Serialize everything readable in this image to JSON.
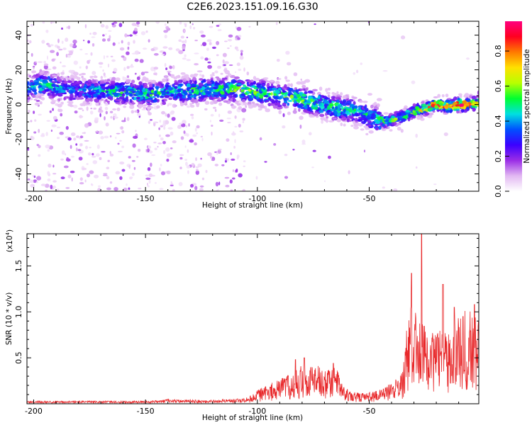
{
  "title": "C2E6.2023.151.09.16.G30",
  "colors": {
    "heat_stops": [
      "#ffffff",
      "#e2b8f2",
      "#9a2de6",
      "#3b00ff",
      "#0050ff",
      "#00e0e0",
      "#00ff30",
      "#b8ff00",
      "#ffe000",
      "#ff7a00",
      "#ff0020",
      "#ff007f"
    ],
    "snr_line": "#e8282a"
  },
  "chart_data": [
    {
      "type": "heatmap",
      "title": "C2E6.2023.151.09.16.G30",
      "xlabel": "Height of straight line (km)",
      "ylabel": "Frequency (Hz)",
      "xlim": [
        -203,
        -1
      ],
      "ylim": [
        -50,
        48
      ],
      "xticks": [
        -200,
        -150,
        -100,
        -50
      ],
      "yticks": [
        -40,
        -20,
        0,
        20,
        40
      ],
      "colorbar": {
        "label": "Normalized spectral amplitude",
        "range": [
          0.0,
          0.97
        ],
        "ticks": [
          "0.0",
          "0.2",
          "0.4",
          "0.6",
          "0.8"
        ]
      },
      "ridge": {
        "x": [
          -203,
          -195,
          -185,
          -170,
          -150,
          -140,
          -120,
          -105,
          -95,
          -85,
          -75,
          -65,
          -55,
          -48,
          -42,
          -35,
          -30,
          -25,
          -20,
          -15,
          -10,
          -5,
          -1
        ],
        "freq": [
          9,
          12,
          8,
          8,
          6,
          7,
          9,
          8,
          6,
          4,
          1,
          -2,
          -4,
          -8,
          -10,
          -7,
          -4,
          -2,
          0,
          -1,
          0,
          0,
          1
        ],
        "amplitude": [
          0.4,
          0.5,
          0.35,
          0.45,
          0.5,
          0.45,
          0.5,
          0.55,
          0.5,
          0.55,
          0.55,
          0.5,
          0.45,
          0.5,
          0.55,
          0.5,
          0.6,
          0.7,
          0.8,
          0.85,
          0.9,
          0.85,
          0.6
        ]
      }
    },
    {
      "type": "line",
      "xlabel": "Height of straight line (km)",
      "ylabel": "SNR (10 * v/v)",
      "scale_note": "(x10",
      "scale_exp": "4",
      "scale_close": ")",
      "xlim": [
        -203,
        -1
      ],
      "ylim": [
        0,
        1.85
      ],
      "xticks": [
        -200,
        -150,
        -100,
        -50
      ],
      "yticks": [
        0.5,
        1.0,
        1.5
      ],
      "envelope": {
        "x": [
          -203,
          -150,
          -140,
          -120,
          -105,
          -100,
          -95,
          -90,
          -85,
          -80,
          -75,
          -70,
          -65,
          -62,
          -58,
          -52,
          -45,
          -40,
          -35,
          -33,
          -30,
          -28,
          -26,
          -24,
          -22,
          -20,
          -17,
          -15,
          -13,
          -10,
          -8,
          -5,
          -1
        ],
        "snr": [
          0.03,
          0.03,
          0.05,
          0.04,
          0.06,
          0.14,
          0.2,
          0.24,
          0.3,
          0.38,
          0.4,
          0.34,
          0.38,
          0.2,
          0.12,
          0.1,
          0.14,
          0.22,
          0.32,
          0.8,
          1.1,
          0.9,
          1.0,
          0.75,
          0.85,
          0.7,
          0.75,
          0.65,
          0.8,
          0.85,
          0.95,
          0.95,
          0.9
        ]
      },
      "peaks": [
        {
          "x": -31,
          "snr": 1.42
        },
        {
          "x": -26.5,
          "snr": 1.85
        },
        {
          "x": -17,
          "snr": 1.3
        },
        {
          "x": -12,
          "snr": 1.05
        },
        {
          "x": -8,
          "snr": 0.95
        },
        {
          "x": -3,
          "snr": 1.08
        },
        {
          "x": -66,
          "snr": 0.44
        },
        {
          "x": -79,
          "snr": 0.5
        },
        {
          "x": -83,
          "snr": 0.48
        }
      ]
    }
  ]
}
